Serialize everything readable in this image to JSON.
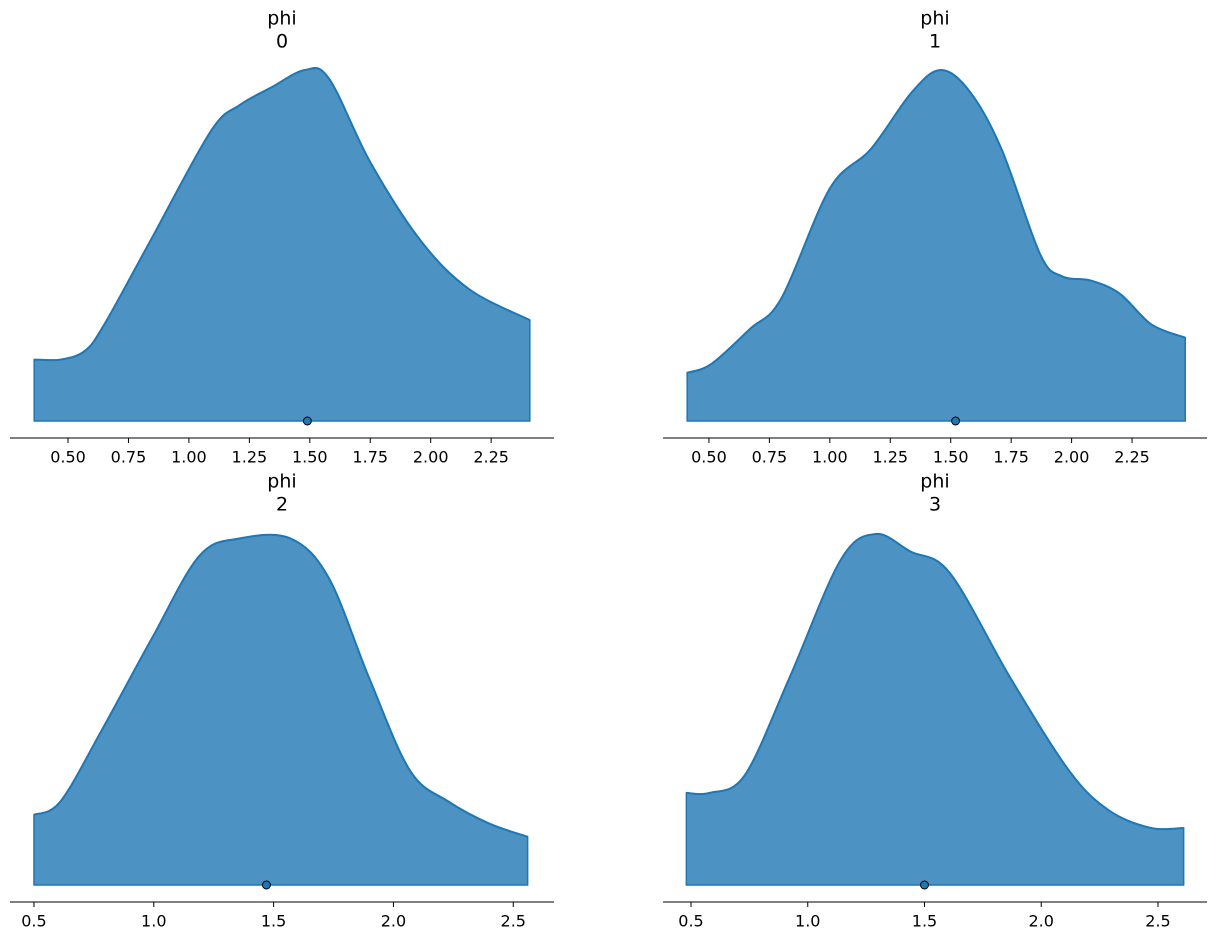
{
  "chart_data": [
    {
      "type": "density",
      "title": "phi",
      "subtitle": "0",
      "color": "#1f77b4",
      "x": [
        0.36,
        0.47,
        0.57,
        0.65,
        0.84,
        1.09,
        1.21,
        1.34,
        1.48,
        1.58,
        1.75,
        1.96,
        2.16,
        2.41
      ],
      "values": [
        0.14,
        0.14,
        0.16,
        0.22,
        0.41,
        0.66,
        0.72,
        0.76,
        0.8,
        0.78,
        0.59,
        0.41,
        0.3,
        0.23
      ],
      "point_estimate": {
        "x": 1.49,
        "y": 0
      },
      "xlim": [
        0.26,
        2.51
      ],
      "ylim": [
        0,
        0.8
      ],
      "xticks": [
        {
          "value": 0.5,
          "label": "0.50"
        },
        0.75,
        {
          "value": 1,
          "label": "1.00"
        },
        1.25,
        {
          "value": 1.5,
          "label": "1.50"
        },
        1.75,
        {
          "value": 2,
          "label": "2.00"
        },
        2.25
      ]
    },
    {
      "type": "density",
      "title": "phi",
      "subtitle": "1",
      "color": "#1f77b4",
      "x": [
        0.41,
        0.51,
        0.67,
        0.8,
        1.0,
        1.17,
        1.34,
        1.46,
        1.58,
        1.71,
        1.87,
        1.96,
        2.08,
        2.2,
        2.33,
        2.47
      ],
      "values": [
        0.11,
        0.13,
        0.21,
        0.28,
        0.53,
        0.62,
        0.75,
        0.8,
        0.75,
        0.62,
        0.38,
        0.33,
        0.32,
        0.29,
        0.22,
        0.19
      ],
      "point_estimate": {
        "x": 1.52,
        "y": 0
      },
      "xlim": [
        0.31,
        2.56
      ],
      "ylim": [
        0,
        0.8
      ],
      "xticks": [
        {
          "value": 0.5,
          "label": "0.50"
        },
        0.75,
        {
          "value": 1,
          "label": "1.00"
        },
        1.25,
        {
          "value": 1.5,
          "label": "1.50"
        },
        1.75,
        {
          "value": 2,
          "label": "2.00"
        },
        2.25
      ]
    },
    {
      "type": "density",
      "title": "phi",
      "subtitle": "2",
      "color": "#1f77b4",
      "x": [
        0.5,
        0.61,
        0.78,
        0.99,
        1.19,
        1.36,
        1.57,
        1.73,
        1.9,
        2.07,
        2.23,
        2.4,
        2.56
      ],
      "values": [
        0.16,
        0.19,
        0.35,
        0.56,
        0.75,
        0.79,
        0.79,
        0.7,
        0.47,
        0.26,
        0.19,
        0.14,
        0.11
      ],
      "point_estimate": {
        "x": 1.47,
        "y": 0
      },
      "xlim": [
        0.4,
        2.67
      ],
      "ylim": [
        0,
        0.8
      ],
      "xticks": [
        0.5,
        {
          "value": 1,
          "label": "1.0"
        },
        1.5,
        {
          "value": 2,
          "label": "2.0"
        },
        2.5
      ]
    },
    {
      "type": "density",
      "title": "phi",
      "subtitle": "3",
      "color": "#1f77b4",
      "x": [
        0.48,
        0.58,
        0.73,
        0.92,
        1.14,
        1.29,
        1.44,
        1.61,
        1.87,
        2.12,
        2.29,
        2.47,
        2.61
      ],
      "values": [
        0.21,
        0.21,
        0.25,
        0.47,
        0.74,
        0.8,
        0.76,
        0.71,
        0.47,
        0.26,
        0.17,
        0.13,
        0.13
      ],
      "point_estimate": {
        "x": 1.5,
        "y": 0
      },
      "xlim": [
        0.38,
        2.71
      ],
      "ylim": [
        0,
        0.8
      ],
      "xticks": [
        0.5,
        {
          "value": 1,
          "label": "1.0"
        },
        1.5,
        {
          "value": 2,
          "label": "2.0"
        },
        2.5
      ]
    }
  ]
}
